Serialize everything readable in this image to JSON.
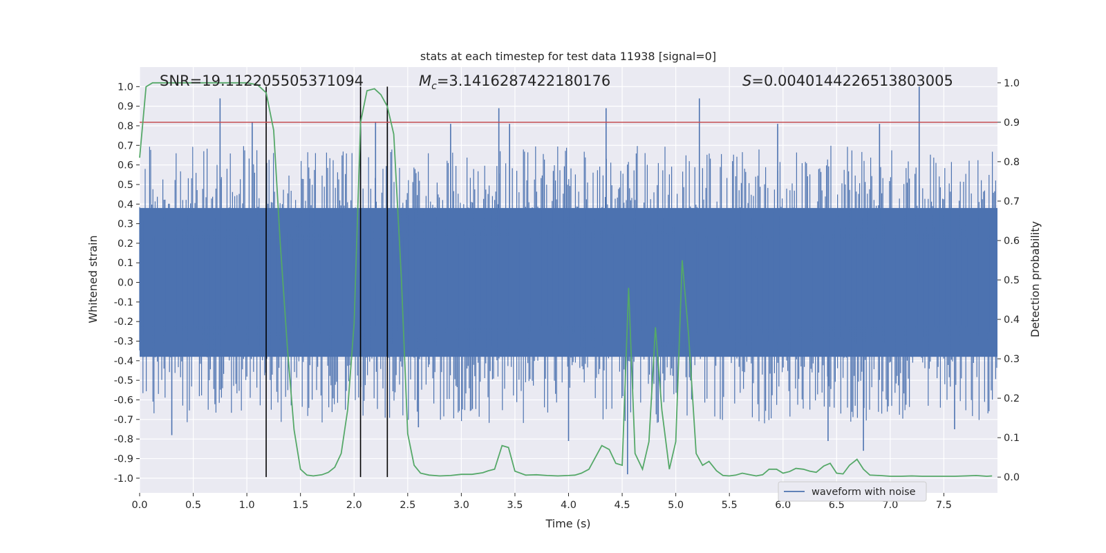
{
  "chart_data": {
    "type": "line",
    "title": "stats at each timestep for test data 11938 [signal=0]",
    "xlabel": "Time (s)",
    "ylabel_left": "Whitened strain",
    "ylabel_right": "Detection probability",
    "xlim": [
      0.0,
      8.0
    ],
    "ylim_left": [
      -1.075,
      1.1
    ],
    "ylim_right": [
      -0.04,
      1.04
    ],
    "x_ticks": [
      "0.0",
      "0.5",
      "1.0",
      "1.5",
      "2.0",
      "2.5",
      "3.0",
      "3.5",
      "4.0",
      "4.5",
      "5.0",
      "5.5",
      "6.0",
      "6.5",
      "7.0",
      "7.5"
    ],
    "y_left_ticks": [
      "1.0",
      "0.9",
      "0.8",
      "0.7",
      "0.6",
      "0.5",
      "0.4",
      "0.3",
      "0.2",
      "0.1",
      "0.0",
      "-0.1",
      "-0.2",
      "-0.3",
      "-0.4",
      "-0.5",
      "-0.6",
      "-0.7",
      "-0.8",
      "-0.9",
      "-1.0"
    ],
    "y_right_ticks": [
      "1.0",
      "0.9",
      "0.8",
      "0.7",
      "0.6",
      "0.5",
      "0.4",
      "0.3",
      "0.2",
      "0.1",
      "0.0"
    ],
    "annotations": {
      "snr": "SNR=19.112205505371094",
      "mc_symbol": "M",
      "mc_sub": "c",
      "mc_value": "=3.1416287422180176",
      "s_symbol": "S",
      "s_value": "=0.0040144226513803005"
    },
    "legend": {
      "position": "lower-right",
      "entries": [
        "waveform with noise"
      ]
    },
    "threshold": {
      "value": 0.9,
      "axis": "right",
      "color": "#c44e52"
    },
    "vertical_markers_s": [
      1.18,
      2.06,
      2.31
    ],
    "waveform_noise": {
      "name": "waveform with noise",
      "color": "#4c72b0",
      "envelope_core": [
        -0.38,
        0.38
      ],
      "typical_peak_range": [
        0.25,
        0.7
      ],
      "notable_spikes": [
        {
          "t": 0.75,
          "v": 0.94
        },
        {
          "t": 1.05,
          "v": 0.82
        },
        {
          "t": 2.06,
          "v": 0.85
        },
        {
          "t": 2.2,
          "v": 0.82
        },
        {
          "t": 2.31,
          "v": 0.83
        },
        {
          "t": 2.9,
          "v": 0.81
        },
        {
          "t": 3.35,
          "v": 0.89
        },
        {
          "t": 3.45,
          "v": 0.81
        },
        {
          "t": 4.35,
          "v": 0.89
        },
        {
          "t": 5.22,
          "v": 0.94
        },
        {
          "t": 5.95,
          "v": 0.81
        },
        {
          "t": 6.9,
          "v": 0.81
        },
        {
          "t": 7.27,
          "v": 1.0
        },
        {
          "t": 0.3,
          "v": -0.78
        },
        {
          "t": 2.6,
          "v": -0.74
        },
        {
          "t": 4.0,
          "v": -0.81
        },
        {
          "t": 4.55,
          "v": -0.98
        },
        {
          "t": 6.42,
          "v": -0.81
        },
        {
          "t": 6.75,
          "v": -0.86
        },
        {
          "t": 7.6,
          "v": -0.75
        }
      ]
    },
    "detection_probability": {
      "color": "#55a868",
      "x": [
        0.0,
        0.06,
        0.12,
        0.3,
        0.6,
        0.9,
        1.0,
        1.1,
        1.18,
        1.25,
        1.31,
        1.38,
        1.44,
        1.5,
        1.56,
        1.62,
        1.7,
        1.76,
        1.82,
        1.88,
        1.94,
        2.0,
        2.06,
        2.12,
        2.19,
        2.25,
        2.31,
        2.37,
        2.44,
        2.5,
        2.56,
        2.62,
        2.7,
        2.8,
        2.9,
        3.0,
        3.1,
        3.2,
        3.25,
        3.31,
        3.38,
        3.44,
        3.5,
        3.6,
        3.7,
        3.8,
        3.9,
        4.0,
        4.06,
        4.12,
        4.19,
        4.25,
        4.31,
        4.38,
        4.44,
        4.5,
        4.56,
        4.62,
        4.69,
        4.75,
        4.81,
        4.87,
        4.94,
        5.0,
        5.06,
        5.12,
        5.19,
        5.25,
        5.31,
        5.38,
        5.44,
        5.5,
        5.56,
        5.62,
        5.69,
        5.75,
        5.81,
        5.87,
        5.94,
        6.0,
        6.06,
        6.12,
        6.19,
        6.25,
        6.31,
        6.38,
        6.44,
        6.5,
        6.56,
        6.62,
        6.69,
        6.75,
        6.81,
        6.9,
        7.0,
        7.1,
        7.2,
        7.3,
        7.4,
        7.5,
        7.6,
        7.7,
        7.8,
        7.9,
        7.95
      ],
      "y": [
        0.81,
        0.99,
        1.0,
        1.0,
        1.0,
        1.0,
        1.0,
        0.995,
        0.975,
        0.88,
        0.6,
        0.32,
        0.12,
        0.02,
        0.005,
        0.003,
        0.006,
        0.012,
        0.025,
        0.06,
        0.17,
        0.39,
        0.9,
        0.98,
        0.985,
        0.97,
        0.94,
        0.87,
        0.51,
        0.11,
        0.03,
        0.01,
        0.005,
        0.003,
        0.004,
        0.007,
        0.007,
        0.011,
        0.016,
        0.02,
        0.08,
        0.075,
        0.015,
        0.005,
        0.006,
        0.004,
        0.003,
        0.004,
        0.005,
        0.01,
        0.02,
        0.05,
        0.08,
        0.07,
        0.035,
        0.03,
        0.48,
        0.06,
        0.02,
        0.09,
        0.38,
        0.17,
        0.02,
        0.09,
        0.55,
        0.36,
        0.06,
        0.03,
        0.04,
        0.016,
        0.004,
        0.003,
        0.005,
        0.01,
        0.006,
        0.003,
        0.006,
        0.02,
        0.02,
        0.01,
        0.014,
        0.022,
        0.02,
        0.015,
        0.012,
        0.028,
        0.035,
        0.01,
        0.008,
        0.03,
        0.045,
        0.02,
        0.005,
        0.004,
        0.002,
        0.002,
        0.003,
        0.002,
        0.002,
        0.002,
        0.002,
        0.003,
        0.004,
        0.002,
        0.003
      ]
    }
  }
}
